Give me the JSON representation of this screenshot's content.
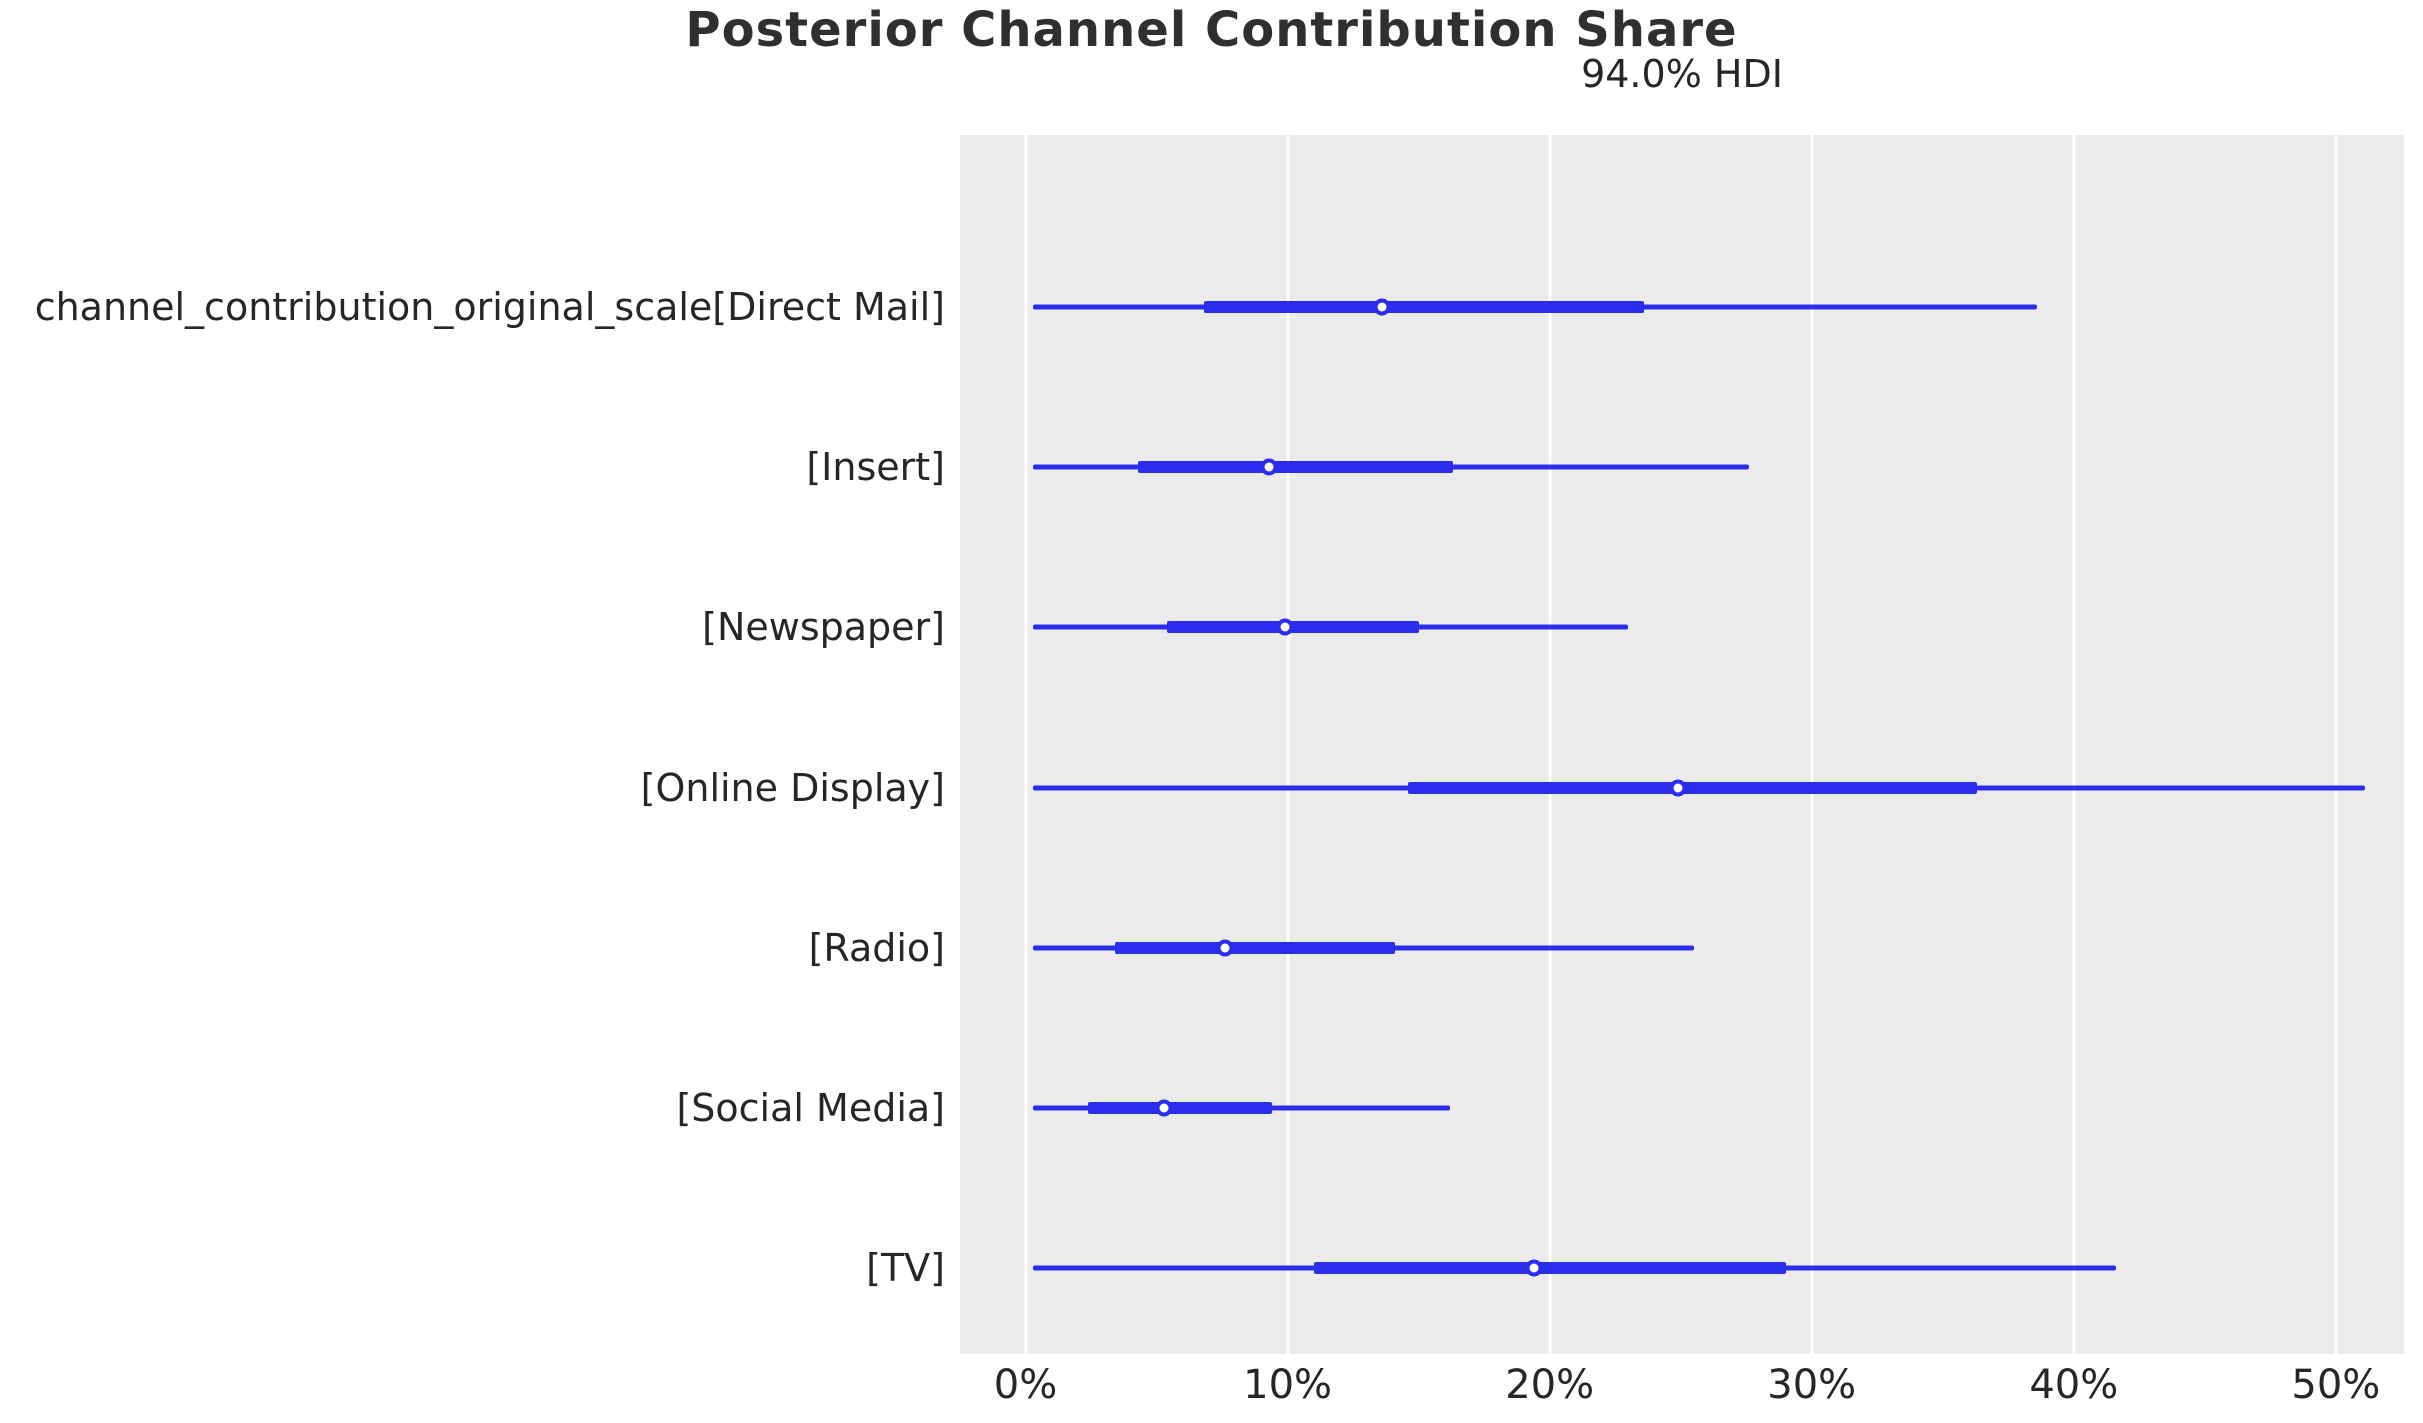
{
  "title": "Posterior Channel Contribution Share",
  "subtitle": "94.0% HDI",
  "colors": {
    "line": "#2a2eec",
    "plot_background": "#ebebeb",
    "grid": "#ffffff",
    "text": "#262626",
    "marker_fill": "#ffffff"
  },
  "chart_data": {
    "type": "forest",
    "title": "Posterior Channel Contribution Share",
    "subtitle": "94.0% HDI",
    "hdi_probability": "94.0%",
    "unit": "%",
    "xlim": [
      -2.5,
      52.6
    ],
    "x_tick_values": [
      0,
      10,
      20,
      30,
      40,
      50
    ],
    "x_tick_labels": [
      "0%",
      "10%",
      "20%",
      "30%",
      "40%",
      "50%"
    ],
    "grid": "vertical white gridlines on gray axes background",
    "legend_position": "none",
    "rows": [
      {
        "label": "channel_contribution_original_scale[Direct Mail]",
        "hdi_low": 0.3,
        "hdi_high": 38.6,
        "quartile_low": 6.8,
        "quartile_high": 23.6,
        "median": 13.6
      },
      {
        "label": "[Insert]",
        "hdi_low": 0.3,
        "hdi_high": 27.6,
        "quartile_low": 4.3,
        "quartile_high": 16.3,
        "median": 9.3
      },
      {
        "label": "[Newspaper]",
        "hdi_low": 0.3,
        "hdi_high": 23.0,
        "quartile_low": 5.4,
        "quartile_high": 15.0,
        "median": 9.9
      },
      {
        "label": "[Online Display]",
        "hdi_low": 0.3,
        "hdi_high": 51.1,
        "quartile_low": 14.6,
        "quartile_high": 36.3,
        "median": 24.9
      },
      {
        "label": "[Radio]",
        "hdi_low": 0.3,
        "hdi_high": 25.5,
        "quartile_low": 3.4,
        "quartile_high": 14.1,
        "median": 7.6
      },
      {
        "label": "[Social Media]",
        "hdi_low": 0.3,
        "hdi_high": 16.2,
        "quartile_low": 2.4,
        "quartile_high": 9.4,
        "median": 5.3
      },
      {
        "label": "[TV]",
        "hdi_low": 0.3,
        "hdi_high": 41.6,
        "quartile_low": 11.0,
        "quartile_high": 29.0,
        "median": 19.4
      }
    ]
  }
}
